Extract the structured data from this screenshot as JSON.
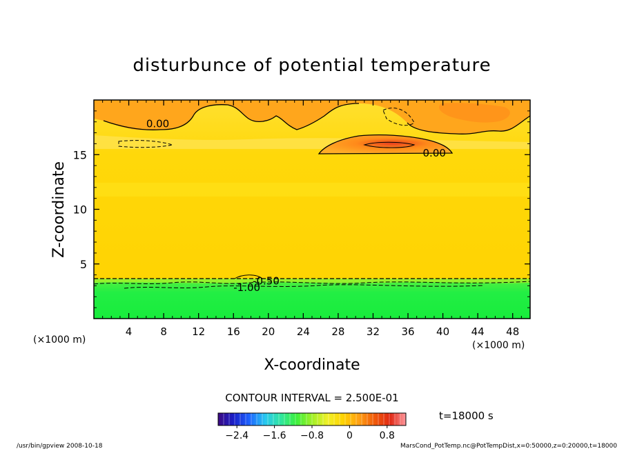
{
  "chart_data": {
    "type": "heatmap",
    "title": "disturbunce of potential temperature",
    "xlabel": "X-coordinate",
    "ylabel": "Z-coordinate",
    "x_unit": "(×1000 m)",
    "x_unit_right": "(×1000 m)",
    "xlim": [
      0,
      50
    ],
    "ylim": [
      0,
      20
    ],
    "x_ticks": [
      4,
      8,
      12,
      16,
      20,
      24,
      28,
      32,
      36,
      40,
      44,
      48
    ],
    "y_ticks": [
      5,
      10,
      15
    ],
    "contour_interval_text": "CONTOUR INTERVAL = 2.500E-01",
    "time_text": "t=18000 s",
    "contour_labels": [
      {
        "text": "0.00",
        "x": 6,
        "y": 17.9
      },
      {
        "text": "0.00",
        "x": 37.7,
        "y": 15.2
      },
      {
        "text": "-1.00",
        "x": 16,
        "y": 2.9
      },
      {
        "text": "-0.50",
        "x": 18.2,
        "y": 3.5
      }
    ],
    "colorbar": {
      "min": -2.8,
      "max": 1.2,
      "ticks": [
        -2.4,
        -1.6,
        -0.8,
        0,
        0.8
      ],
      "tick_labels": [
        "−2.4",
        "−1.6",
        "−0.8",
        "0",
        "0.8"
      ],
      "stops": [
        "#3c0a82",
        "#1a1fc8",
        "#1e64ff",
        "#28c8f0",
        "#30e6a0",
        "#3cf03c",
        "#a0f028",
        "#f0f028",
        "#ffd200",
        "#ffa014",
        "#f05a0a",
        "#e02814",
        "#ff9aa0"
      ]
    },
    "regions": [
      {
        "name": "lower-negative-layer",
        "value": -1.0,
        "color": "#22ee44",
        "z_range": [
          0,
          3.6
        ]
      },
      {
        "name": "mid-neutral-layer",
        "value": 0.1,
        "color": "#ffd400",
        "z_range": [
          3.6,
          14.5
        ]
      },
      {
        "name": "upper-layer",
        "value": 0.2,
        "color": "#ffdd22",
        "z_range": [
          14.5,
          20
        ]
      },
      {
        "name": "warm-patch",
        "value": 0.6,
        "color": "#ff9a1a",
        "z_range": [
          15.2,
          17.2
        ]
      }
    ]
  },
  "footer": {
    "left": "/usr/bin/gpview   2008-10-18",
    "right": "MarsCond_PotTemp.nc@PotTempDist,x=0:50000,z=0:20000,t=18000"
  }
}
